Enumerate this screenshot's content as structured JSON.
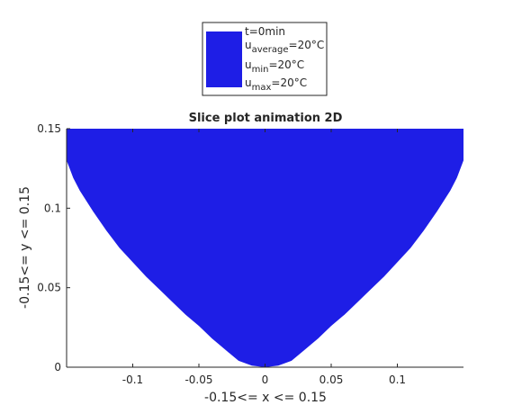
{
  "chart_data": {
    "type": "area",
    "title": "Slice plot animation 2D",
    "xlabel": "-0.15<= x <= 0.15",
    "ylabel": "-0.15<= y <= 0.15",
    "xlim": [
      -0.15,
      0.15
    ],
    "ylim": [
      0,
      0.15
    ],
    "xticks": [
      -0.1,
      -0.05,
      0,
      0.05,
      0.1
    ],
    "xtick_labels": [
      "-0.1",
      "-0.05",
      "0",
      "0.05",
      "0.1"
    ],
    "yticks": [
      0,
      0.05,
      0.1,
      0.15
    ],
    "ytick_labels": [
      "0",
      "0.05",
      "0.1",
      "0.15"
    ],
    "grid": false,
    "legend_position": "top-center",
    "fill_color": "#1e1ee6",
    "series": [
      {
        "x": [
          -0.15,
          -0.15,
          -0.145,
          -0.14,
          -0.13,
          -0.12,
          -0.11,
          -0.1,
          -0.09,
          -0.08,
          -0.07,
          -0.06,
          -0.05,
          -0.04,
          -0.03,
          -0.02,
          -0.01,
          0,
          0.01,
          0.02,
          0.03,
          0.04,
          0.05,
          0.06,
          0.07,
          0.08,
          0.09,
          0.1,
          0.11,
          0.12,
          0.13,
          0.14,
          0.145,
          0.15,
          0.15
        ],
        "y": [
          0.15,
          0.13,
          0.119,
          0.111,
          0.098,
          0.086,
          0.075,
          0.066,
          0.057,
          0.049,
          0.041,
          0.033,
          0.026,
          0.018,
          0.011,
          0.004,
          0.001,
          0,
          0.001,
          0.004,
          0.011,
          0.018,
          0.026,
          0.033,
          0.041,
          0.049,
          0.057,
          0.066,
          0.075,
          0.086,
          0.098,
          0.111,
          0.119,
          0.13,
          0.15
        ]
      }
    ],
    "legend": {
      "lines": [
        {
          "main": "t=0min",
          "sub": "",
          "rest": ""
        },
        {
          "main": "u",
          "sub": "average",
          "rest": "=20°C"
        },
        {
          "main": "u",
          "sub": "min",
          "rest": "=20°C"
        },
        {
          "main": "u",
          "sub": "max",
          "rest": "=20°C"
        }
      ]
    }
  }
}
